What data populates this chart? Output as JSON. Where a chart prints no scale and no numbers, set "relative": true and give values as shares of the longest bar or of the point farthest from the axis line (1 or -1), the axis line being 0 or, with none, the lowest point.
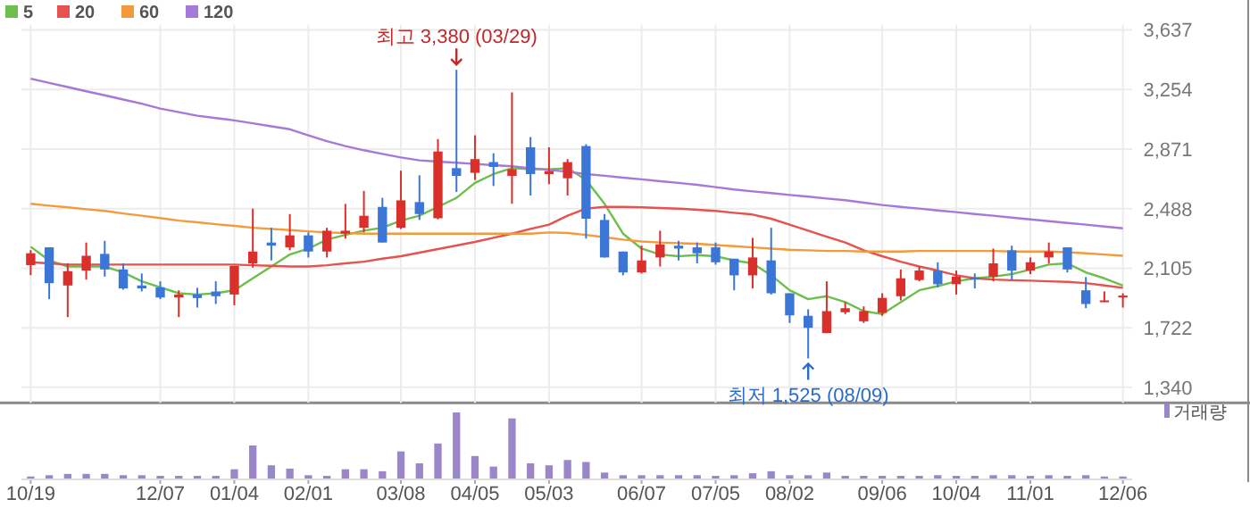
{
  "chart_data": [
    {
      "type": "candlestick",
      "categories": [
        "10/19",
        null,
        null,
        null,
        null,
        null,
        null,
        "12/07",
        null,
        null,
        null,
        "01/04",
        null,
        null,
        null,
        "02/01",
        null,
        null,
        null,
        null,
        "03/08",
        null,
        null,
        null,
        "04/05",
        null,
        null,
        null,
        "05/03",
        null,
        null,
        null,
        null,
        "06/07",
        null,
        null,
        null,
        "07/05",
        null,
        null,
        null,
        "08/02",
        null,
        null,
        null,
        null,
        "09/06",
        null,
        null,
        null,
        "10/04",
        null,
        null,
        null,
        "11/01",
        null,
        null,
        null,
        null,
        "12/06"
      ],
      "ohlc": [
        [
          2125,
          2221,
          2060,
          2201
        ],
        [
          2239,
          2239,
          1906,
          2009
        ],
        [
          1994,
          2136,
          1791,
          2086
        ],
        [
          2090,
          2270,
          2032,
          2185
        ],
        [
          2197,
          2281,
          2051,
          2097
        ],
        [
          2097,
          2136,
          1967,
          1975
        ],
        [
          1994,
          2071,
          1956,
          1975
        ],
        [
          1982,
          2021,
          1906,
          1917
        ],
        [
          1917,
          1963,
          1791,
          1936
        ],
        [
          1936,
          1979,
          1852,
          1913
        ],
        [
          1955,
          2021,
          1875,
          1925
        ],
        [
          1936,
          2120,
          1867,
          2120
        ],
        [
          2136,
          2488,
          2109,
          2212
        ],
        [
          2270,
          2365,
          2155,
          2250
        ],
        [
          2239,
          2453,
          2220,
          2316
        ],
        [
          2316,
          2335,
          2174,
          2212
        ],
        [
          2212,
          2365,
          2174,
          2346
        ],
        [
          2327,
          2518,
          2296,
          2346
        ],
        [
          2365,
          2602,
          2335,
          2442
        ],
        [
          2499,
          2557,
          2270,
          2270
        ],
        [
          2365,
          2732,
          2357,
          2541
        ],
        [
          2530,
          2702,
          2415,
          2453
        ],
        [
          2426,
          2935,
          2419,
          2855
        ],
        [
          2748,
          3380,
          2595,
          2698
        ],
        [
          2718,
          2959,
          2672,
          2806
        ],
        [
          2787,
          2844,
          2633,
          2756
        ],
        [
          2698,
          3235,
          2519,
          2741
        ],
        [
          2882,
          2948,
          2572,
          2710
        ],
        [
          2710,
          2882,
          2645,
          2729
        ],
        [
          2683,
          2806,
          2572,
          2787
        ],
        [
          2890,
          2902,
          2296,
          2423
        ],
        [
          2415,
          2453,
          2174,
          2174
        ],
        [
          2212,
          2212,
          2059,
          2078
        ],
        [
          2078,
          2250,
          2071,
          2155
        ],
        [
          2174,
          2346,
          2116,
          2258
        ],
        [
          2250,
          2281,
          2155,
          2231
        ],
        [
          2239,
          2270,
          2136,
          2201
        ],
        [
          2239,
          2270,
          2128,
          2143
        ],
        [
          2166,
          2166,
          1963,
          2059
        ],
        [
          2059,
          2300,
          1975,
          2174
        ],
        [
          2155,
          2365,
          1936,
          1944
        ],
        [
          1944,
          1944,
          1753,
          1802
        ],
        [
          1799,
          1841,
          1525,
          1722
        ],
        [
          1688,
          2021,
          1688,
          1829
        ],
        [
          1822,
          1887,
          1810,
          1848
        ],
        [
          1764,
          1860,
          1753,
          1829
        ],
        [
          1818,
          1944,
          1799,
          1914
        ],
        [
          1925,
          2097,
          1898,
          2040
        ],
        [
          2029,
          2116,
          2021,
          2090
        ],
        [
          2090,
          2143,
          1982,
          2002
        ],
        [
          2002,
          2090,
          1936,
          2051
        ],
        [
          2044,
          2071,
          1975,
          2033
        ],
        [
          2051,
          2231,
          2021,
          2136
        ],
        [
          2220,
          2250,
          2029,
          2090
        ],
        [
          2090,
          2174,
          2067,
          2143
        ],
        [
          2174,
          2270,
          2136,
          2212
        ],
        [
          2239,
          2239,
          2078,
          2097
        ],
        [
          1963,
          2048,
          1848,
          1875
        ],
        [
          1887,
          1956,
          1887,
          1898
        ],
        [
          1917,
          1944,
          1852,
          1929
        ]
      ],
      "series": [
        {
          "type": "line",
          "name": "5",
          "color": "#6cbf4a",
          "values": [
            2243,
            2155,
            2116,
            2116,
            2116,
            2078,
            2021,
            1982,
            1944,
            1936,
            1944,
            1963,
            2040,
            2116,
            2193,
            2231,
            2289,
            2319,
            2346,
            2365,
            2411,
            2442,
            2499,
            2557,
            2653,
            2710,
            2748,
            2741,
            2741,
            2748,
            2672,
            2519,
            2327,
            2231,
            2193,
            2182,
            2189,
            2182,
            2155,
            2136,
            2059,
            1963,
            1906,
            1925,
            1887,
            1829,
            1810,
            1887,
            1963,
            1990,
            2021,
            2040,
            2051,
            2067,
            2097,
            2128,
            2136,
            2078,
            2040,
            1994
          ]
        },
        {
          "type": "line",
          "name": "20",
          "color": "#e5524f",
          "values": [
            2143,
            2136,
            2128,
            2128,
            2128,
            2128,
            2128,
            2128,
            2128,
            2128,
            2128,
            2128,
            2124,
            2120,
            2116,
            2116,
            2124,
            2136,
            2147,
            2166,
            2182,
            2205,
            2228,
            2251,
            2274,
            2300,
            2327,
            2358,
            2385,
            2442,
            2488,
            2499,
            2499,
            2496,
            2492,
            2488,
            2480,
            2473,
            2461,
            2450,
            2423,
            2385,
            2346,
            2308,
            2270,
            2220,
            2182,
            2147,
            2116,
            2090,
            2059,
            2040,
            2032,
            2028,
            2025,
            2021,
            2017,
            2009,
            1994,
            1979
          ]
        },
        {
          "type": "line",
          "name": "60",
          "color": "#f39a3c",
          "values": [
            2519,
            2507,
            2496,
            2484,
            2473,
            2457,
            2442,
            2427,
            2411,
            2400,
            2388,
            2377,
            2365,
            2358,
            2350,
            2342,
            2335,
            2331,
            2327,
            2327,
            2327,
            2327,
            2327,
            2327,
            2327,
            2327,
            2327,
            2327,
            2335,
            2331,
            2319,
            2304,
            2289,
            2277,
            2270,
            2266,
            2262,
            2254,
            2247,
            2239,
            2231,
            2224,
            2220,
            2216,
            2216,
            2212,
            2212,
            2212,
            2216,
            2216,
            2216,
            2216,
            2216,
            2212,
            2212,
            2212,
            2208,
            2201,
            2193,
            2185
          ]
        },
        {
          "type": "line",
          "name": "120",
          "color": "#a678d8",
          "values": [
            3323,
            3296,
            3269,
            3242,
            3216,
            3189,
            3162,
            3131,
            3108,
            3085,
            3070,
            3055,
            3036,
            3017,
            2998,
            2959,
            2921,
            2890,
            2863,
            2840,
            2817,
            2798,
            2790,
            2783,
            2775,
            2767,
            2760,
            2748,
            2737,
            2725,
            2710,
            2699,
            2687,
            2676,
            2664,
            2653,
            2641,
            2626,
            2611,
            2599,
            2588,
            2576,
            2565,
            2553,
            2542,
            2526,
            2511,
            2499,
            2488,
            2476,
            2465,
            2453,
            2442,
            2430,
            2419,
            2407,
            2396,
            2385,
            2373,
            2361
          ]
        }
      ],
      "ylim": [
        1240,
        3637
      ],
      "yticks": [
        {
          "value": 1340,
          "label": "1,340"
        },
        {
          "value": 1722,
          "label": "1,722"
        },
        {
          "value": 2105,
          "label": "2,105"
        },
        {
          "value": 2488,
          "label": "2,488"
        },
        {
          "value": 2871,
          "label": "2,871"
        },
        {
          "value": 3254,
          "label": "3,254"
        },
        {
          "value": 3637,
          "label": "3,637"
        }
      ],
      "grid": true,
      "legend": "top left",
      "annotations": [
        {
          "text": "최고 3,380 (03/29)",
          "y": 3380
        },
        {
          "text": "최저 1,525 (08/09)",
          "y": 1525
        }
      ]
    },
    {
      "type": "bar",
      "relative": true,
      "legend": "top right",
      "categories": [
        null,
        null,
        null,
        null,
        null,
        null,
        null,
        null,
        null,
        null,
        null,
        null,
        null,
        null,
        null,
        null,
        null,
        null,
        null,
        null,
        null,
        null,
        null,
        null,
        null,
        null,
        null,
        null,
        null,
        null,
        null,
        null,
        null,
        null,
        null,
        null,
        null,
        null,
        null,
        null,
        null,
        null,
        null,
        null,
        null,
        null,
        null,
        null,
        null,
        null,
        null,
        null,
        null,
        null,
        null,
        null,
        null,
        null,
        null,
        null
      ],
      "series": [
        {
          "name": "거래량",
          "color": "#9b86c9",
          "values": [
            0.03,
            0.05,
            0.07,
            0.07,
            0.07,
            0.05,
            0.05,
            0.04,
            0.04,
            0.04,
            0.04,
            0.14,
            0.5,
            0.2,
            0.15,
            0.05,
            0.04,
            0.14,
            0.14,
            0.11,
            0.41,
            0.23,
            0.53,
            1,
            0.34,
            0.18,
            0.91,
            0.23,
            0.2,
            0.28,
            0.25,
            0.09,
            0.05,
            0.05,
            0.05,
            0.05,
            0.05,
            0.04,
            0.05,
            0.08,
            0.11,
            0.05,
            0.05,
            0.09,
            0.04,
            0.04,
            0.04,
            0.04,
            0.04,
            0.05,
            0.04,
            0.04,
            0.05,
            0.05,
            0.04,
            0.05,
            0.04,
            0.05,
            0.03,
            0.03
          ]
        }
      ]
    }
  ]
}
